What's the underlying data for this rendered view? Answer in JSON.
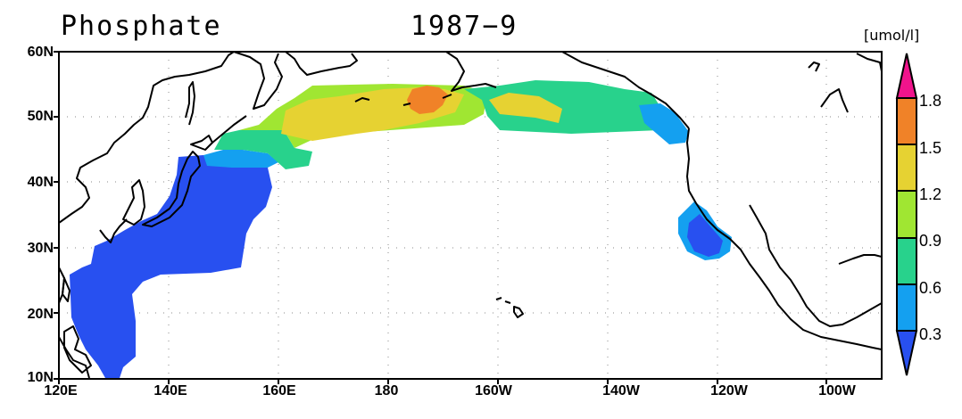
{
  "title": {
    "variable": "Phosphate",
    "period": "1987−9"
  },
  "colorbar": {
    "unit": "[umol/l]",
    "labels": [
      "1.8",
      "1.5",
      "1.2",
      "0.9",
      "0.6",
      "0.3"
    ],
    "colors": [
      "#f0148c",
      "#f08228",
      "#e6d232",
      "#a0e632",
      "#28d28c",
      "#14a0f0",
      "#2850f0"
    ],
    "bins": [
      "> 1.8",
      "1.5–1.8",
      "1.2–1.5",
      "0.9–1.2",
      "0.6–0.9",
      "0.3–0.6",
      "< 0.3"
    ]
  },
  "axes": {
    "lat_ticks": [
      "60N",
      "50N",
      "40N",
      "30N",
      "20N",
      "10N"
    ],
    "lon_ticks": [
      "120E",
      "140E",
      "160E",
      "180",
      "160W",
      "140W",
      "120W",
      "100W"
    ],
    "lat_range": [
      10,
      60
    ],
    "lon_range_east": [
      120,
      270
    ],
    "grid": "dotted"
  }
}
